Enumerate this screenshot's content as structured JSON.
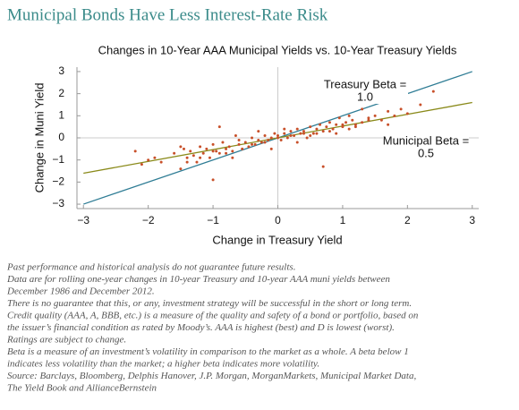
{
  "chart_data": {
    "type": "scatter",
    "title": "Municipal Bonds Have Less Interest-Rate Risk",
    "subtitle": "Changes in 10-Year AAA Municipal Yields vs. 10-Year Treasury Yields",
    "x_label": "Change in Treasury Yield",
    "y_label": "Change in Muni Yield",
    "xlim": [
      -3.1,
      3.1
    ],
    "ylim": [
      -3.2,
      3.2
    ],
    "xticks": [
      {
        "value": -3,
        "label": "−3"
      },
      {
        "value": -2,
        "label": "−2"
      },
      {
        "value": -1,
        "label": "−1"
      },
      0,
      1,
      2,
      3
    ],
    "yticks": [
      {
        "value": -3,
        "label": "−3"
      },
      {
        "value": -2,
        "label": "−2"
      },
      {
        "value": -1,
        "label": "−1"
      },
      0,
      1,
      2,
      3
    ],
    "color": "#c8502a",
    "x": [
      -2.2,
      -2.1,
      -1.9,
      -1.8,
      -1.6,
      -1.5,
      -1.45,
      -1.4,
      -1.35,
      -1.3,
      -1.25,
      -1.2,
      -1.15,
      -1.1,
      -1.05,
      -1.0,
      -0.95,
      -0.9,
      -0.85,
      -0.8,
      -0.75,
      -0.7,
      -0.65,
      -0.6,
      -0.55,
      -0.5,
      -0.45,
      -0.4,
      -0.35,
      -0.3,
      -0.25,
      -0.2,
      -0.15,
      -0.1,
      -0.05,
      0,
      0.05,
      0.1,
      0.15,
      0.2,
      0.25,
      0.3,
      0.35,
      0.4,
      0.45,
      0.5,
      0.55,
      0.6,
      0.65,
      0.7,
      0.75,
      0.8,
      0.85,
      0.9,
      0.95,
      1.0,
      1.05,
      1.1,
      1.15,
      1.2,
      1.3,
      1.4,
      1.5,
      1.6,
      1.7,
      1.8,
      1.9,
      2.0,
      2.2,
      2.4,
      -1.4,
      -1.2,
      -1.0,
      -0.8,
      -0.6,
      -0.4,
      -0.2,
      0,
      0.2,
      0.4,
      0.6,
      0.8,
      1.0,
      1.2,
      1.4,
      -1.0,
      0.7,
      -0.3,
      0.3,
      1.1,
      -1.5,
      -0.9,
      -0.7,
      0.9,
      1.3,
      1.7,
      -2.0,
      0.1,
      -0.1,
      0.5
    ],
    "y": [
      -0.6,
      -1.2,
      -0.9,
      -1.1,
      -0.7,
      -1.4,
      -0.5,
      -0.9,
      -0.6,
      -0.8,
      -1.1,
      -0.4,
      -0.7,
      -0.5,
      -0.9,
      -0.3,
      -0.6,
      -0.7,
      -0.2,
      -0.5,
      -0.4,
      -0.6,
      0.1,
      -0.3,
      -0.5,
      -0.2,
      -0.4,
      0.0,
      -0.3,
      -0.1,
      -0.2,
      0.1,
      -0.1,
      0.0,
      0.2,
      0.1,
      -0.1,
      0.2,
      0.0,
      0.3,
      0.1,
      0.4,
      0.2,
      0.3,
      0.0,
      0.5,
      0.2,
      0.4,
      0.6,
      0.3,
      0.5,
      0.7,
      0.4,
      0.6,
      0.9,
      0.5,
      0.7,
      0.4,
      0.8,
      0.6,
      0.7,
      0.9,
      1.0,
      0.8,
      1.2,
      1.0,
      1.3,
      1.1,
      1.5,
      2.1,
      -1.1,
      -0.9,
      -0.6,
      -0.7,
      -0.1,
      -0.3,
      -0.2,
      0.0,
      0.1,
      0.2,
      0.2,
      0.3,
      0.6,
      0.5,
      0.8,
      -1.9,
      -1.3,
      0.3,
      -0.2,
      1.0,
      -0.4,
      0.5,
      -0.9,
      0.2,
      1.3,
      0.6,
      -1.0,
      0.4,
      -0.5,
      0.1
    ],
    "lines": [
      {
        "label_lines": [
          "Treasury Beta =",
          "1.0"
        ],
        "color": "#2f7d95",
        "x": [
          -3,
          3
        ],
        "y": [
          -3,
          3
        ]
      },
      {
        "label_lines": [
          "Municipal Beta =",
          "0.5"
        ],
        "color": "#8a8a1a",
        "x": [
          -3,
          3
        ],
        "y": [
          -1.6,
          1.6
        ]
      }
    ],
    "notes": [
      "Past performance and historical analysis do not guarantee future results.",
      "Data are for rolling one-year changes in 10-year Treasury and 10-year AAA muni yields between",
      "December 1986 and December 2012.",
      "There is no guarantee that this, or any, investment strategy will be successful in the short or long term.",
      "Credit quality (AAA, A, BBB, etc.) is a measure of the quality and safety of a bond or portfolio, based on",
      "the issuer’s financial condition as rated by Moody’s. AAA is highest (best) and D is lowest (worst).",
      "Ratings are subject to change.",
      "Beta is a measure of an investment’s volatility in comparison to the market as a whole. A beta below 1",
      "indicates less volatility than the market; a higher beta indicates more volatility.",
      "Source: Barclays, Bloomberg, Delphis Hanover, J.P. Morgan, MorganMarkets, Municipal Market Data,",
      "The Yield Book and AllianceBernstein"
    ]
  }
}
